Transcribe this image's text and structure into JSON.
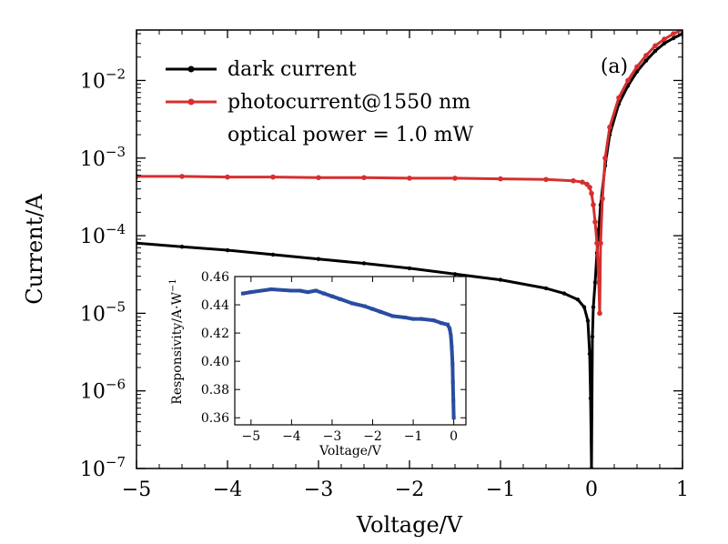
{
  "chart_data": [
    {
      "type": "line",
      "scale_y": "log",
      "panel_label": "(a)",
      "xlabel": "Voltage/V",
      "ylabel": "Current/A",
      "xlim": [
        -5,
        1
      ],
      "ylim_exp": [
        -7,
        -1.35
      ],
      "x_ticks": [
        -5,
        -4,
        -3,
        -2,
        -1,
        0,
        1
      ],
      "x_tick_labels": [
        "−5",
        "−4",
        "−3",
        "−2",
        "−1",
        "0",
        "1"
      ],
      "y_ticks": [
        {
          "exp": -7,
          "label": "10",
          "sup": "−7"
        },
        {
          "exp": -6,
          "label": "10",
          "sup": "−6"
        },
        {
          "exp": -5,
          "label": "10",
          "sup": "−5"
        },
        {
          "exp": -4,
          "label": "10",
          "sup": "−4"
        },
        {
          "exp": -3,
          "label": "10",
          "sup": "−3"
        },
        {
          "exp": -2,
          "label": "10",
          "sup": "−2"
        }
      ],
      "legend": {
        "placement": "top-left",
        "entries": [
          "dark current",
          "photocurrent@1550 nm"
        ],
        "note": "optical power = 1.0 mW"
      },
      "series": [
        {
          "name": "dark current",
          "color": "#000000",
          "x": [
            -5,
            -4.5,
            -4,
            -3.5,
            -3,
            -2.5,
            -2,
            -1.5,
            -1,
            -0.5,
            -0.3,
            -0.15,
            -0.08,
            -0.04,
            -0.02,
            -0.01,
            0,
            0.01,
            0.02,
            0.04,
            0.06,
            0.08,
            0.1,
            0.15,
            0.2,
            0.3,
            0.4,
            0.5,
            0.6,
            0.7,
            0.8,
            0.9,
            1.0
          ],
          "y": [
            8e-05,
            7.2e-05,
            6.5e-05,
            5.7e-05,
            5e-05,
            4.4e-05,
            3.8e-05,
            3.2e-05,
            2.7e-05,
            2.1e-05,
            1.8e-05,
            1.5e-05,
            1.2e-05,
            8e-06,
            3e-06,
            8e-07,
            1e-07,
            5e-06,
            1.2e-05,
            2.5e-05,
            6e-05,
            0.00012,
            0.00025,
            0.0008,
            0.002,
            0.005,
            0.0085,
            0.013,
            0.018,
            0.024,
            0.03,
            0.035,
            0.04
          ]
        },
        {
          "name": "photocurrent@1550 nm",
          "color": "#d62f2f",
          "x": [
            -5,
            -4.5,
            -4,
            -3.5,
            -3,
            -2.5,
            -2,
            -1.5,
            -1,
            -0.5,
            -0.2,
            -0.1,
            -0.05,
            -0.02,
            0,
            0.02,
            0.04,
            0.06,
            0.08,
            0.09,
            0.1,
            0.12,
            0.15,
            0.2,
            0.3,
            0.4,
            0.5,
            0.6,
            0.7,
            0.8,
            0.9,
            1.0
          ],
          "y": [
            0.00058,
            0.00058,
            0.00057,
            0.00057,
            0.00056,
            0.00056,
            0.00055,
            0.00055,
            0.00054,
            0.00053,
            0.00051,
            0.00049,
            0.00046,
            0.00042,
            0.00035,
            0.00025,
            0.00015,
            8e-05,
            2.5e-05,
            1e-05,
            8e-05,
            0.0003,
            0.001,
            0.0025,
            0.006,
            0.01,
            0.015,
            0.021,
            0.028,
            0.034,
            0.04,
            0.045
          ]
        }
      ]
    },
    {
      "type": "line",
      "role": "inset",
      "xlabel": "Voltage/V",
      "ylabel": "Responsivity/A·W",
      "ylabel_sup": "−1",
      "xlim": [
        -5.4,
        0.3
      ],
      "ylim": [
        0.355,
        0.46
      ],
      "x_ticks": [
        -5,
        -4,
        -3,
        -2,
        -1,
        0
      ],
      "x_tick_labels": [
        "−5",
        "−4",
        "−3",
        "−2",
        "−1",
        "0"
      ],
      "y_ticks": [
        0.36,
        0.38,
        0.4,
        0.42,
        0.44,
        0.46
      ],
      "y_tick_labels": [
        "0.36",
        "0.38",
        "0.40",
        "0.42",
        "0.44",
        "0.46"
      ],
      "series": [
        {
          "name": "responsivity",
          "color": "#2a4ca0",
          "x": [
            -5.2,
            -5,
            -4.5,
            -4,
            -3.8,
            -3.6,
            -3.4,
            -3.2,
            -3,
            -2.8,
            -2.5,
            -2.2,
            -2,
            -1.8,
            -1.5,
            -1.2,
            -1,
            -0.8,
            -0.5,
            -0.3,
            -0.15,
            -0.1,
            -0.07,
            -0.05,
            -0.03,
            -0.02,
            -0.01,
            0
          ],
          "y": [
            0.448,
            0.449,
            0.451,
            0.45,
            0.45,
            0.449,
            0.45,
            0.448,
            0.446,
            0.444,
            0.441,
            0.439,
            0.437,
            0.435,
            0.432,
            0.431,
            0.43,
            0.43,
            0.429,
            0.427,
            0.426,
            0.423,
            0.418,
            0.41,
            0.398,
            0.385,
            0.372,
            0.36
          ]
        }
      ]
    }
  ]
}
